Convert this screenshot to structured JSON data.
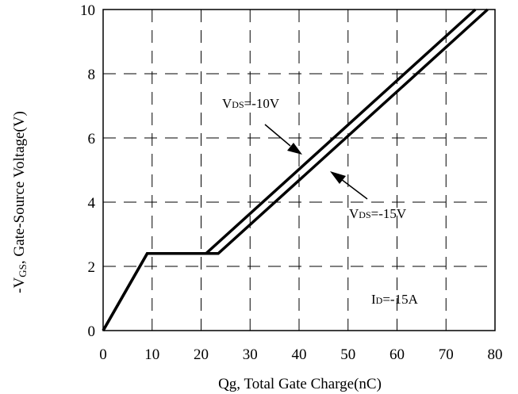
{
  "chart_data": {
    "type": "line",
    "xlabel": "Qg, Total Gate Charge(nC)",
    "ylabel_prefix": "-V",
    "ylabel_sub": "GS",
    "ylabel_rest": ", Gate-Source Voltage(V)",
    "xlim": [
      0,
      80
    ],
    "ylim": [
      0,
      10
    ],
    "xticks": [
      "0",
      "10",
      "20",
      "30",
      "40",
      "50",
      "60",
      "70",
      "80"
    ],
    "yticks": [
      "0",
      "2",
      "4",
      "6",
      "8",
      "10"
    ],
    "grid": "dashed",
    "series": [
      {
        "name": "VDS=-10V",
        "x": [
          0,
          9,
          21,
          76
        ],
        "y": [
          0,
          2.4,
          2.4,
          10
        ]
      },
      {
        "name": "VDS=-15V",
        "x": [
          0,
          9,
          23.5,
          78.5
        ],
        "y": [
          0,
          2.4,
          2.4,
          10
        ]
      }
    ],
    "annotations": [
      {
        "pre": "V",
        "sub": "DS",
        "post": "=-10V"
      },
      {
        "pre": "V",
        "sub": "DS",
        "post": "=-15V"
      },
      {
        "pre": "I",
        "sub": "D",
        "post": "=-15A"
      }
    ]
  }
}
